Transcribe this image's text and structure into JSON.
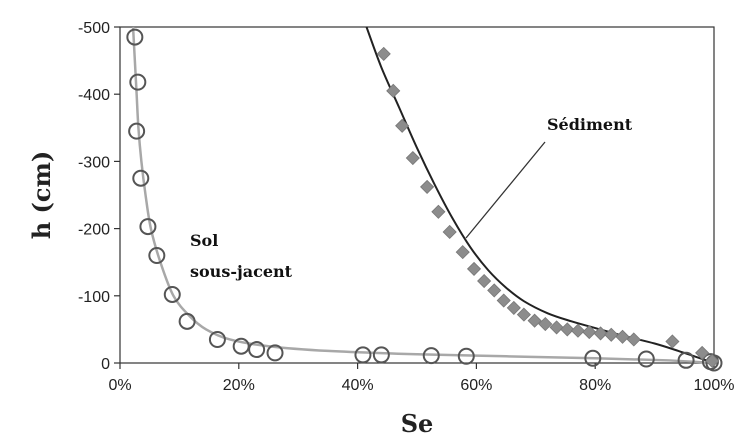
{
  "chart_data": {
    "type": "scatter",
    "xlabel": "Se",
    "ylabel": "h (cm)",
    "xlim": [
      0,
      100
    ],
    "ylim": [
      0,
      -500
    ],
    "xticks": [
      {
        "value": 0,
        "label": "0%"
      },
      {
        "value": 20,
        "label": "20%"
      },
      {
        "value": 40,
        "label": "40%"
      },
      {
        "value": 60,
        "label": "60%"
      },
      {
        "value": 80,
        "label": "80%"
      },
      {
        "value": 100,
        "label": "100%"
      }
    ],
    "yticks": [
      {
        "value": 0,
        "label": "0"
      },
      {
        "value": -100,
        "label": "-100"
      },
      {
        "value": -200,
        "label": "-200"
      },
      {
        "value": -300,
        "label": "-300"
      },
      {
        "value": -400,
        "label": "-400"
      },
      {
        "value": -500,
        "label": "-500"
      }
    ],
    "grid": false,
    "series": [
      {
        "name": "Sol sous-jacent",
        "marker": "circle",
        "color": "#555555",
        "fit_color": "#a8a8a8",
        "points": [
          {
            "x": 2.5,
            "y": -485
          },
          {
            "x": 3.0,
            "y": -418
          },
          {
            "x": 2.8,
            "y": -345
          },
          {
            "x": 3.5,
            "y": -275
          },
          {
            "x": 4.7,
            "y": -203
          },
          {
            "x": 6.2,
            "y": -160
          },
          {
            "x": 8.8,
            "y": -102
          },
          {
            "x": 11.3,
            "y": -62
          },
          {
            "x": 16.4,
            "y": -35
          },
          {
            "x": 20.4,
            "y": -25
          },
          {
            "x": 23.0,
            "y": -20
          },
          {
            "x": 26.1,
            "y": -15
          },
          {
            "x": 40.9,
            "y": -12
          },
          {
            "x": 44.0,
            "y": -12
          },
          {
            "x": 52.4,
            "y": -11
          },
          {
            "x": 58.3,
            "y": -10
          },
          {
            "x": 79.6,
            "y": -7
          },
          {
            "x": 88.6,
            "y": -6
          },
          {
            "x": 95.3,
            "y": -4
          },
          {
            "x": 99.4,
            "y": -2
          },
          {
            "x": 100.0,
            "y": 0
          }
        ],
        "fit": [
          {
            "x": 2.2,
            "y": -500
          },
          {
            "x": 2.5,
            "y": -450
          },
          {
            "x": 2.8,
            "y": -400
          },
          {
            "x": 3.1,
            "y": -350
          },
          {
            "x": 3.6,
            "y": -300
          },
          {
            "x": 4.3,
            "y": -250
          },
          {
            "x": 5.2,
            "y": -200
          },
          {
            "x": 6.8,
            "y": -150
          },
          {
            "x": 9.0,
            "y": -100
          },
          {
            "x": 11.7,
            "y": -70
          },
          {
            "x": 14.5,
            "y": -50
          },
          {
            "x": 18.5,
            "y": -35
          },
          {
            "x": 25.0,
            "y": -25
          },
          {
            "x": 35.0,
            "y": -18
          },
          {
            "x": 50.0,
            "y": -13
          },
          {
            "x": 65.0,
            "y": -10
          },
          {
            "x": 80.0,
            "y": -7
          },
          {
            "x": 92.0,
            "y": -4
          },
          {
            "x": 100.0,
            "y": 0
          }
        ]
      },
      {
        "name": "Sédiment",
        "marker": "diamond",
        "color": "#8c8c8c",
        "fit_color": "#222222",
        "points": [
          {
            "x": 44.4,
            "y": -460
          },
          {
            "x": 46.0,
            "y": -405
          },
          {
            "x": 47.5,
            "y": -353
          },
          {
            "x": 49.3,
            "y": -305
          },
          {
            "x": 51.7,
            "y": -262
          },
          {
            "x": 53.6,
            "y": -225
          },
          {
            "x": 55.5,
            "y": -195
          },
          {
            "x": 57.7,
            "y": -165
          },
          {
            "x": 59.6,
            "y": -140
          },
          {
            "x": 61.3,
            "y": -122
          },
          {
            "x": 63.0,
            "y": -108
          },
          {
            "x": 64.6,
            "y": -93
          },
          {
            "x": 66.3,
            "y": -82
          },
          {
            "x": 68.0,
            "y": -72
          },
          {
            "x": 69.8,
            "y": -63
          },
          {
            "x": 71.6,
            "y": -58
          },
          {
            "x": 73.5,
            "y": -53
          },
          {
            "x": 75.3,
            "y": -50
          },
          {
            "x": 77.1,
            "y": -48
          },
          {
            "x": 79.0,
            "y": -46
          },
          {
            "x": 80.9,
            "y": -44
          },
          {
            "x": 82.7,
            "y": -42
          },
          {
            "x": 84.6,
            "y": -39
          },
          {
            "x": 86.5,
            "y": -35
          },
          {
            "x": 93.0,
            "y": -32
          },
          {
            "x": 98.0,
            "y": -15
          },
          {
            "x": 99.7,
            "y": -3
          }
        ],
        "fit": [
          {
            "x": 41.5,
            "y": -500
          },
          {
            "x": 44.0,
            "y": -440
          },
          {
            "x": 47.0,
            "y": -380
          },
          {
            "x": 50.0,
            "y": -320
          },
          {
            "x": 53.0,
            "y": -265
          },
          {
            "x": 56.0,
            "y": -215
          },
          {
            "x": 59.0,
            "y": -172
          },
          {
            "x": 62.0,
            "y": -138
          },
          {
            "x": 65.0,
            "y": -112
          },
          {
            "x": 68.0,
            "y": -92
          },
          {
            "x": 72.0,
            "y": -74
          },
          {
            "x": 76.0,
            "y": -62
          },
          {
            "x": 80.0,
            "y": -52
          },
          {
            "x": 85.0,
            "y": -40
          },
          {
            "x": 90.0,
            "y": -29
          },
          {
            "x": 94.0,
            "y": -18
          },
          {
            "x": 97.0,
            "y": -9
          },
          {
            "x": 100.0,
            "y": 0
          }
        ]
      }
    ],
    "annotations": [
      {
        "lines": [
          "Sédiment"
        ]
      },
      {
        "lines": [
          "Sol",
          "sous-jacent"
        ]
      }
    ]
  }
}
